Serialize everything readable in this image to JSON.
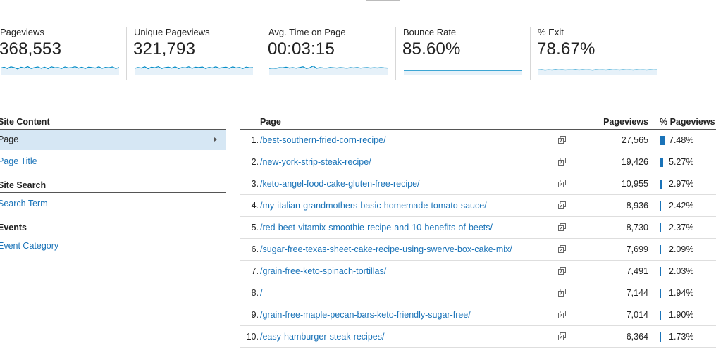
{
  "metrics": [
    {
      "label": "Pageviews",
      "value": "368,553",
      "spark": [
        0.45,
        0.55,
        0.4,
        0.6,
        0.5,
        0.35,
        0.55,
        0.45,
        0.62,
        0.4,
        0.5,
        0.58,
        0.42,
        0.55,
        0.38,
        0.6,
        0.48,
        0.52,
        0.4,
        0.58,
        0.46,
        0.5,
        0.62,
        0.44,
        0.55,
        0.4,
        0.57,
        0.5,
        0.45,
        0.6,
        0.42,
        0.53,
        0.48,
        0.58,
        0.4,
        0.52
      ],
      "color": "#058dc7"
    },
    {
      "label": "Unique Pageviews",
      "value": "321,793",
      "spark": [
        0.42,
        0.52,
        0.45,
        0.6,
        0.38,
        0.55,
        0.48,
        0.62,
        0.4,
        0.5,
        0.57,
        0.44,
        0.6,
        0.38,
        0.52,
        0.47,
        0.6,
        0.42,
        0.55,
        0.5,
        0.58,
        0.4,
        0.53,
        0.46,
        0.6,
        0.44,
        0.5,
        0.56,
        0.42,
        0.6,
        0.46,
        0.52,
        0.4,
        0.57,
        0.48,
        0.5
      ],
      "color": "#058dc7"
    },
    {
      "label": "Avg. Time on Page",
      "value": "00:03:15",
      "spark": [
        0.4,
        0.45,
        0.42,
        0.5,
        0.48,
        0.55,
        0.45,
        0.5,
        0.43,
        0.52,
        0.6,
        0.4,
        0.48,
        0.7,
        0.42,
        0.5,
        0.46,
        0.44,
        0.52,
        0.48,
        0.45,
        0.5,
        0.47,
        0.43,
        0.5,
        0.46,
        0.52,
        0.44,
        0.48,
        0.5,
        0.45,
        0.49,
        0.46,
        0.5,
        0.47,
        0.45
      ],
      "color": "#058dc7"
    },
    {
      "label": "Bounce Rate",
      "value": "85.60%",
      "spark": [
        0.15,
        0.16,
        0.15,
        0.17,
        0.15,
        0.16,
        0.15,
        0.16,
        0.15,
        0.17,
        0.15,
        0.16,
        0.15,
        0.16,
        0.17,
        0.15,
        0.16,
        0.15,
        0.16,
        0.15,
        0.17,
        0.15,
        0.16,
        0.15,
        0.16,
        0.15,
        0.16,
        0.17,
        0.15,
        0.16,
        0.15,
        0.16,
        0.15,
        0.16,
        0.15,
        0.16
      ],
      "color": "#058dc7"
    },
    {
      "label": "% Exit",
      "value": "78.67%",
      "spark": [
        0.22,
        0.24,
        0.2,
        0.23,
        0.21,
        0.25,
        0.22,
        0.24,
        0.21,
        0.23,
        0.22,
        0.25,
        0.21,
        0.24,
        0.22,
        0.23,
        0.2,
        0.24,
        0.22,
        0.23,
        0.21,
        0.25,
        0.22,
        0.23,
        0.21,
        0.24,
        0.22,
        0.23,
        0.21,
        0.24,
        0.22,
        0.23,
        0.21,
        0.24,
        0.22,
        0.23
      ],
      "color": "#058dc7"
    }
  ],
  "leftnav": {
    "site_content_heading": "Site Content",
    "page_item": "Page",
    "page_title_item": "Page Title",
    "site_search_heading": "Site Search",
    "search_term_item": "Search Term",
    "events_heading": "Events",
    "event_category_item": "Event Category"
  },
  "table": {
    "headers": {
      "page": "Page",
      "pageviews": "Pageviews",
      "pct_pageviews": "% Pageviews"
    },
    "bar_color": "#1a73b8",
    "rows": [
      {
        "index": "1.",
        "page": "/best-southern-fried-corn-recipe/",
        "pageviews": "27,565",
        "pct": "7.48%",
        "share": 7.48
      },
      {
        "index": "2.",
        "page": "/new-york-strip-steak-recipe/",
        "pageviews": "19,426",
        "pct": "5.27%",
        "share": 5.27
      },
      {
        "index": "3.",
        "page": "/keto-angel-food-cake-gluten-free-recipe/",
        "pageviews": "10,955",
        "pct": "2.97%",
        "share": 2.97
      },
      {
        "index": "4.",
        "page": "/my-italian-grandmothers-basic-homemade-tomato-sauce/",
        "pageviews": "8,936",
        "pct": "2.42%",
        "share": 2.42
      },
      {
        "index": "5.",
        "page": "/red-beet-vitamix-smoothie-recipe-and-10-benefits-of-beets/",
        "pageviews": "8,730",
        "pct": "2.37%",
        "share": 2.37
      },
      {
        "index": "6.",
        "page": "/sugar-free-texas-sheet-cake-recipe-using-swerve-box-cake-mix/",
        "pageviews": "7,699",
        "pct": "2.09%",
        "share": 2.09
      },
      {
        "index": "7.",
        "page": "/grain-free-keto-spinach-tortillas/",
        "pageviews": "7,491",
        "pct": "2.03%",
        "share": 2.03
      },
      {
        "index": "8.",
        "page": "/",
        "pageviews": "7,144",
        "pct": "1.94%",
        "share": 1.94
      },
      {
        "index": "9.",
        "page": "/grain-free-maple-pecan-bars-keto-friendly-sugar-free/",
        "pageviews": "7,014",
        "pct": "1.90%",
        "share": 1.9
      },
      {
        "index": "10.",
        "page": "/easy-hamburger-steak-recipes/",
        "pageviews": "6,364",
        "pct": "1.73%",
        "share": 1.73
      }
    ]
  }
}
